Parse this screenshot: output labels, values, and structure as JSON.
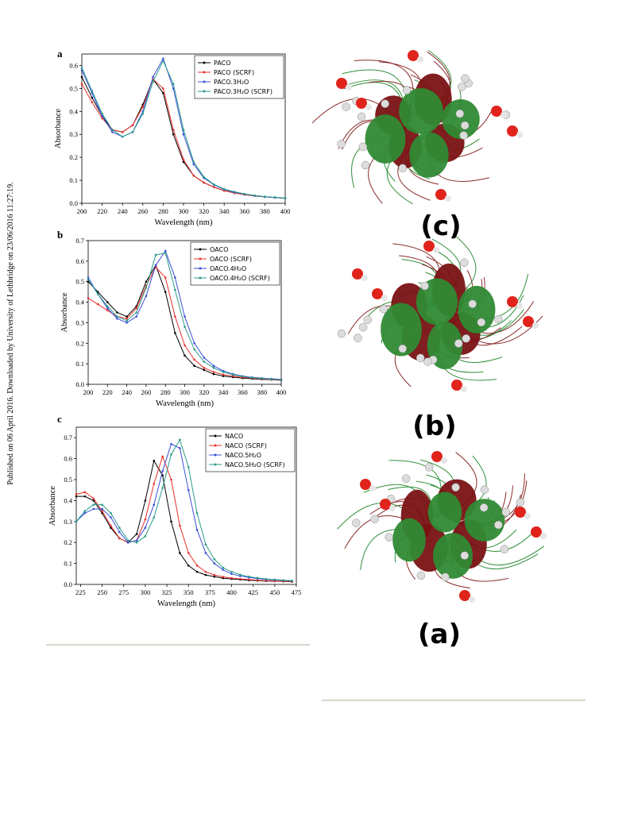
{
  "side_note": "Published on 06 April 2016. Downloaded by University of Lethbridge on 23/06/2016 11:27:19.",
  "figure_labels": [
    "(c)",
    "(b)",
    "(a)"
  ],
  "chart_data": [
    {
      "type": "line",
      "panel": "a",
      "x_label": "Wavelength (nm)",
      "y_label": "Absorbance",
      "legend": "upper right",
      "x": [
        200,
        210,
        220,
        230,
        240,
        250,
        260,
        270,
        280,
        290,
        300,
        310,
        320,
        330,
        340,
        350,
        360,
        370,
        380,
        390,
        400
      ],
      "xlim": [
        200,
        400
      ],
      "ylim": [
        0,
        0.65
      ],
      "xticks": [
        200,
        220,
        240,
        260,
        280,
        300,
        320,
        340,
        360,
        380,
        400
      ],
      "yticks": [
        {
          "value": 0,
          "label": "0.0"
        },
        0.1,
        0.2,
        0.3,
        0.4,
        0.5,
        0.6
      ],
      "series": [
        {
          "name": "PACO",
          "color": "#000000",
          "values": [
            0.55,
            0.46,
            0.38,
            0.32,
            0.31,
            0.34,
            0.43,
            0.54,
            0.48,
            0.3,
            0.18,
            0.12,
            0.09,
            0.07,
            0.055,
            0.045,
            0.038,
            0.032,
            0.028,
            0.025,
            0.022
          ]
        },
        {
          "name": "PACO (SCRF)",
          "color": "#e8302a",
          "values": [
            0.52,
            0.44,
            0.37,
            0.32,
            0.31,
            0.34,
            0.42,
            0.54,
            0.5,
            0.32,
            0.19,
            0.12,
            0.09,
            0.07,
            0.055,
            0.045,
            0.038,
            0.032,
            0.028,
            0.025,
            0.022
          ]
        },
        {
          "name": "PACO.3H₂O",
          "color": "#3a4fd8",
          "values": [
            0.58,
            0.48,
            0.38,
            0.31,
            0.29,
            0.31,
            0.4,
            0.55,
            0.63,
            0.5,
            0.3,
            0.17,
            0.11,
            0.08,
            0.06,
            0.048,
            0.04,
            0.033,
            0.028,
            0.025,
            0.022
          ]
        },
        {
          "name": "PACO.3H₂O (SCRF)",
          "color": "#2a9a8a",
          "values": [
            0.59,
            0.49,
            0.39,
            0.32,
            0.29,
            0.31,
            0.39,
            0.53,
            0.62,
            0.52,
            0.32,
            0.18,
            0.115,
            0.082,
            0.062,
            0.05,
            0.041,
            0.034,
            0.029,
            0.026,
            0.023
          ]
        }
      ]
    },
    {
      "type": "line",
      "panel": "b",
      "x_label": "Wavelength (nm)",
      "y_label": "Absorbance",
      "legend": "upper right",
      "x": [
        200,
        210,
        220,
        230,
        240,
        250,
        260,
        270,
        280,
        290,
        300,
        310,
        320,
        330,
        340,
        350,
        360,
        370,
        380,
        390,
        400
      ],
      "xlim": [
        200,
        400
      ],
      "ylim": [
        0,
        0.7
      ],
      "xticks": [
        200,
        220,
        240,
        260,
        280,
        300,
        320,
        340,
        360,
        380,
        400
      ],
      "yticks": [
        {
          "value": 0,
          "label": "0.0"
        },
        0.1,
        0.2,
        0.3,
        0.4,
        0.5,
        0.6,
        0.7
      ],
      "series": [
        {
          "name": "OACO",
          "color": "#000000",
          "values": [
            0.5,
            0.45,
            0.4,
            0.35,
            0.33,
            0.38,
            0.5,
            0.58,
            0.45,
            0.25,
            0.14,
            0.09,
            0.07,
            0.05,
            0.04,
            0.035,
            0.03,
            0.027,
            0.024,
            0.022,
            0.02
          ]
        },
        {
          "name": "OACO (SCRF)",
          "color": "#e8302a",
          "values": [
            0.42,
            0.39,
            0.36,
            0.33,
            0.32,
            0.37,
            0.48,
            0.57,
            0.52,
            0.33,
            0.19,
            0.12,
            0.08,
            0.06,
            0.047,
            0.04,
            0.034,
            0.03,
            0.026,
            0.023,
            0.021
          ]
        },
        {
          "name": "OACO.4H₂O",
          "color": "#3a4fd8",
          "values": [
            0.52,
            0.44,
            0.37,
            0.32,
            0.3,
            0.33,
            0.43,
            0.58,
            0.65,
            0.52,
            0.33,
            0.2,
            0.13,
            0.09,
            0.065,
            0.05,
            0.04,
            0.034,
            0.03,
            0.027,
            0.024
          ]
        },
        {
          "name": "OACO.4H₂O (SCRF)",
          "color": "#2a9a8a",
          "values": [
            0.51,
            0.44,
            0.38,
            0.33,
            0.31,
            0.35,
            0.47,
            0.63,
            0.64,
            0.46,
            0.28,
            0.17,
            0.11,
            0.08,
            0.06,
            0.047,
            0.038,
            0.032,
            0.028,
            0.025,
            0.022
          ]
        }
      ]
    },
    {
      "type": "line",
      "panel": "c",
      "x_label": "Wavelength (nm)",
      "y_label": "Absorbance",
      "legend": "upper right",
      "x": [
        220,
        230,
        240,
        250,
        260,
        270,
        280,
        290,
        300,
        310,
        320,
        330,
        340,
        350,
        360,
        370,
        380,
        390,
        400,
        410,
        420,
        430,
        440,
        450,
        460,
        470
      ],
      "xlim": [
        220,
        475
      ],
      "ylim": [
        0,
        0.75
      ],
      "xticks": [
        225,
        250,
        275,
        300,
        325,
        350,
        375,
        400,
        425,
        450,
        475
      ],
      "yticks": [
        {
          "value": 0,
          "label": "0.0"
        },
        0.1,
        0.2,
        0.3,
        0.4,
        0.5,
        0.6,
        0.7
      ],
      "series": [
        {
          "name": "NACO",
          "color": "#000000",
          "values": [
            0.42,
            0.42,
            0.4,
            0.34,
            0.27,
            0.22,
            0.2,
            0.24,
            0.4,
            0.59,
            0.52,
            0.3,
            0.15,
            0.09,
            0.06,
            0.045,
            0.037,
            0.03,
            0.026,
            0.023,
            0.02,
            0.018,
            0.016,
            0.015,
            0.014,
            0.013
          ]
        },
        {
          "name": "NACO (SCRF)",
          "color": "#e8302a",
          "values": [
            0.43,
            0.44,
            0.41,
            0.35,
            0.28,
            0.22,
            0.2,
            0.21,
            0.31,
            0.48,
            0.61,
            0.5,
            0.28,
            0.15,
            0.09,
            0.06,
            0.045,
            0.036,
            0.03,
            0.026,
            0.023,
            0.02,
            0.018,
            0.016,
            0.015,
            0.014
          ]
        },
        {
          "name": "NACO.5H₂O",
          "color": "#3a4fd8",
          "values": [
            0.3,
            0.34,
            0.36,
            0.36,
            0.32,
            0.25,
            0.2,
            0.21,
            0.27,
            0.38,
            0.54,
            0.67,
            0.65,
            0.45,
            0.26,
            0.15,
            0.1,
            0.07,
            0.05,
            0.04,
            0.033,
            0.028,
            0.024,
            0.021,
            0.019,
            0.017
          ]
        },
        {
          "name": "NACO.5H₂O (SCRF)",
          "color": "#2a9a8a",
          "values": [
            0.3,
            0.35,
            0.38,
            0.38,
            0.34,
            0.27,
            0.21,
            0.2,
            0.23,
            0.32,
            0.46,
            0.62,
            0.69,
            0.56,
            0.34,
            0.19,
            0.12,
            0.08,
            0.06,
            0.046,
            0.037,
            0.031,
            0.026,
            0.023,
            0.02,
            0.018
          ]
        }
      ]
    }
  ]
}
